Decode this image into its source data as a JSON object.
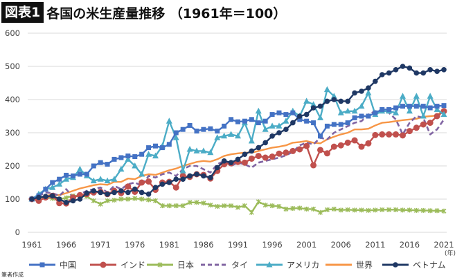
{
  "header": {
    "tag": "図表1",
    "title": "各国の米生産量推移 （1961年＝100）"
  },
  "source": "筆者作成",
  "chart_data": {
    "type": "line",
    "title": "各国の米生産量推移 （1961年＝100）",
    "xlabel": "(年)",
    "ylabel": "",
    "ylim": [
      0,
      600
    ],
    "yticks": [
      0,
      100,
      200,
      300,
      400,
      500,
      600
    ],
    "xticks": [
      1961,
      1966,
      1971,
      1976,
      1981,
      1986,
      1991,
      1996,
      2001,
      2006,
      2011,
      2016,
      2021
    ],
    "xrange": [
      1961,
      2021
    ],
    "grid": true,
    "legend": "bottom",
    "series": [
      {
        "name": "中国",
        "color": "#4472C4",
        "marker": "square",
        "dash": false,
        "values": [
          100,
          110,
          130,
          150,
          160,
          172,
          170,
          175,
          175,
          200,
          210,
          205,
          220,
          225,
          230,
          228,
          235,
          255,
          260,
          255,
          265,
          300,
          310,
          322,
          305,
          310,
          312,
          305,
          320,
          340,
          333,
          335,
          340,
          330,
          335,
          355,
          360,
          355,
          360,
          340,
          335,
          330,
          290,
          320,
          325,
          325,
          330,
          345,
          350,
          350,
          360,
          370,
          370,
          375,
          380,
          380,
          380,
          380,
          375,
          380,
          382
        ]
      },
      {
        "name": "インド",
        "color": "#C0504D",
        "marker": "circle",
        "dash": false,
        "values": [
          100,
          95,
          105,
          110,
          88,
          87,
          105,
          112,
          115,
          120,
          122,
          115,
          125,
          118,
          138,
          122,
          150,
          153,
          128,
          150,
          152,
          135,
          170,
          167,
          175,
          173,
          162,
          185,
          205,
          208,
          212,
          210,
          222,
          230,
          225,
          228,
          237,
          240,
          245,
          250,
          260,
          202,
          248,
          238,
          258,
          262,
          270,
          277,
          258,
          268,
          293,
          295,
          295,
          295,
          292,
          305,
          315,
          325,
          330,
          350,
          365
        ]
      },
      {
        "name": "日本",
        "color": "#9BBB59",
        "marker": "x",
        "dash": false,
        "values": [
          100,
          105,
          105,
          102,
          100,
          104,
          110,
          110,
          108,
          95,
          85,
          95,
          97,
          100,
          100,
          102,
          100,
          98,
          95,
          80,
          80,
          80,
          80,
          90,
          90,
          88,
          82,
          78,
          80,
          80,
          75,
          80,
          60,
          92,
          82,
          80,
          78,
          70,
          72,
          73,
          70,
          70,
          60,
          68,
          70,
          67,
          68,
          67,
          67,
          66,
          67,
          68,
          68,
          68,
          67,
          67,
          66,
          66,
          65,
          65,
          64
        ]
      },
      {
        "name": "タイ",
        "color": "#8064A2",
        "marker": "none",
        "dash": true,
        "values": [
          100,
          110,
          120,
          118,
          110,
          130,
          105,
          115,
          125,
          130,
          135,
          120,
          140,
          130,
          145,
          150,
          140,
          170,
          165,
          175,
          180,
          170,
          190,
          200,
          200,
          190,
          180,
          205,
          215,
          200,
          210,
          205,
          195,
          210,
          215,
          220,
          225,
          232,
          242,
          262,
          270,
          265,
          285,
          280,
          300,
          310,
          320,
          330,
          335,
          355,
          365,
          368,
          360,
          340,
          295,
          330,
          350,
          345,
          295,
          310,
          340
        ]
      },
      {
        "name": "アメリカ",
        "color": "#4BACC6",
        "marker": "triangle",
        "dash": false,
        "values": [
          100,
          115,
          130,
          135,
          145,
          160,
          165,
          190,
          170,
          155,
          160,
          155,
          160,
          190,
          220,
          200,
          175,
          235,
          230,
          260,
          335,
          285,
          185,
          250,
          245,
          245,
          240,
          285,
          290,
          295,
          290,
          330,
          275,
          365,
          310,
          320,
          320,
          335,
          365,
          350,
          395,
          385,
          345,
          430,
          410,
          360,
          365,
          365,
          380,
          420,
          355,
          365,
          365,
          360,
          410,
          365,
          410,
          350,
          410,
          370,
          355
        ]
      },
      {
        "name": "世界",
        "color": "#F79646",
        "marker": "none",
        "dash": false,
        "values": [
          100,
          104,
          110,
          113,
          112,
          118,
          125,
          132,
          137,
          142,
          145,
          143,
          152,
          152,
          162,
          160,
          170,
          175,
          173,
          180,
          187,
          192,
          200,
          206,
          212,
          215,
          213,
          220,
          230,
          235,
          238,
          240,
          240,
          245,
          250,
          255,
          258,
          262,
          270,
          272,
          275,
          270,
          268,
          280,
          288,
          295,
          300,
          310,
          310,
          312,
          322,
          330,
          332,
          335,
          338,
          340,
          342,
          348,
          350,
          352,
          370
        ]
      },
      {
        "name": "ベトナム",
        "color": "#1F3864",
        "marker": "circle-small",
        "dash": false,
        "values": [
          100,
          105,
          108,
          110,
          100,
          90,
          95,
          100,
          118,
          125,
          120,
          115,
          120,
          125,
          120,
          130,
          120,
          115,
          135,
          145,
          150,
          160,
          160,
          170,
          175,
          170,
          165,
          195,
          215,
          210,
          220,
          235,
          245,
          255,
          270,
          290,
          300,
          310,
          330,
          350,
          355,
          375,
          380,
          395,
          400,
          395,
          395,
          420,
          425,
          435,
          455,
          475,
          480,
          490,
          500,
          495,
          480,
          480,
          490,
          485,
          490
        ]
      }
    ]
  }
}
